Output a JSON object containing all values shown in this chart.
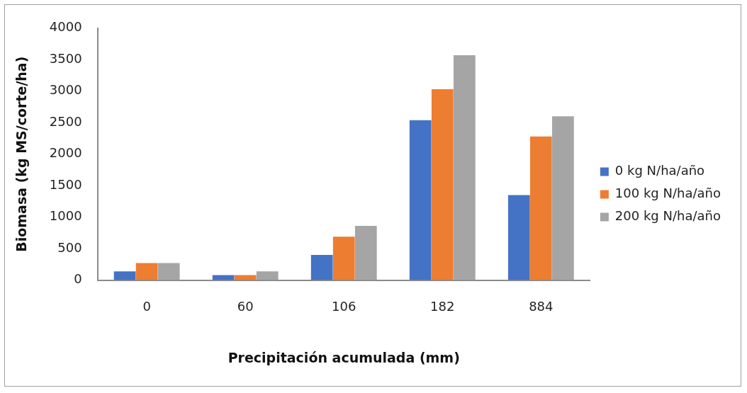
{
  "chart_data": {
    "type": "bar",
    "xlabel": "Precipitación acumulada (mm)",
    "ylabel": "Biomasa (kg MS/corte/ha)",
    "categories": [
      "0",
      "60",
      "106",
      "182",
      "884"
    ],
    "series": [
      {
        "name": "0 kg N/ha/año",
        "color": "#4472c4",
        "values": [
          140,
          80,
          400,
          2540,
          1350
        ]
      },
      {
        "name": "100 kg N/ha/año",
        "color": "#ed7d31",
        "values": [
          270,
          80,
          690,
          3030,
          2280
        ]
      },
      {
        "name": "200 kg N/ha/año",
        "color": "#a5a5a5",
        "values": [
          270,
          140,
          860,
          3570,
          2600
        ]
      }
    ],
    "ylim": [
      0,
      4000
    ],
    "yticks": [
      0,
      500,
      1000,
      1500,
      2000,
      2500,
      3000,
      3500,
      4000
    ],
    "grid": false,
    "legend": "right"
  }
}
